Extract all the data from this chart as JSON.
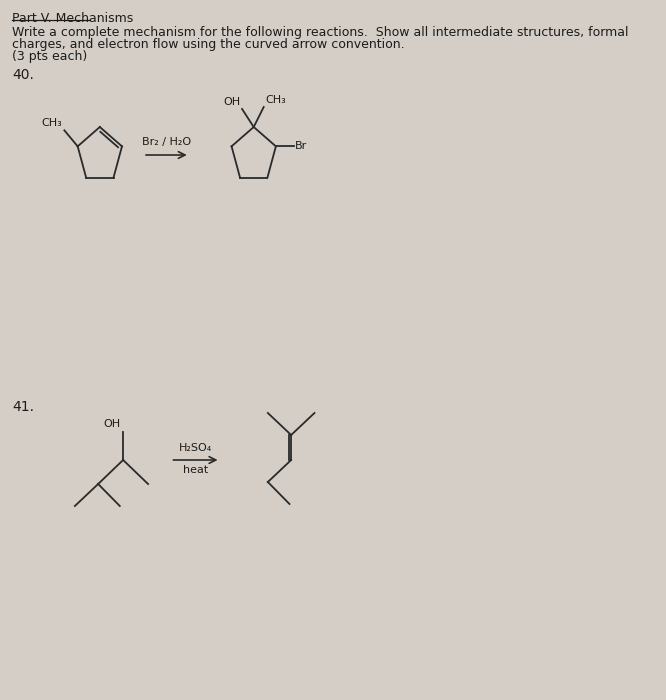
{
  "bg_color": "#d4cec6",
  "title_section": "Part V. Mechanisms",
  "instructions_line1": "Write a complete mechanism for the following reactions.  Show all intermediate structures, formal",
  "instructions_line2": "charges, and electron flow using the curved arrow convention.",
  "instructions_line3": "(3 pts each)",
  "q40_label": "40.",
  "q41_label": "41.",
  "reagent_40": "Br₂ / H₂O",
  "reagent_41_line1": "H₂SO₄",
  "reagent_41_line2": "heat",
  "line_color": "#2a2a2a",
  "text_color": "#1c1c1c"
}
